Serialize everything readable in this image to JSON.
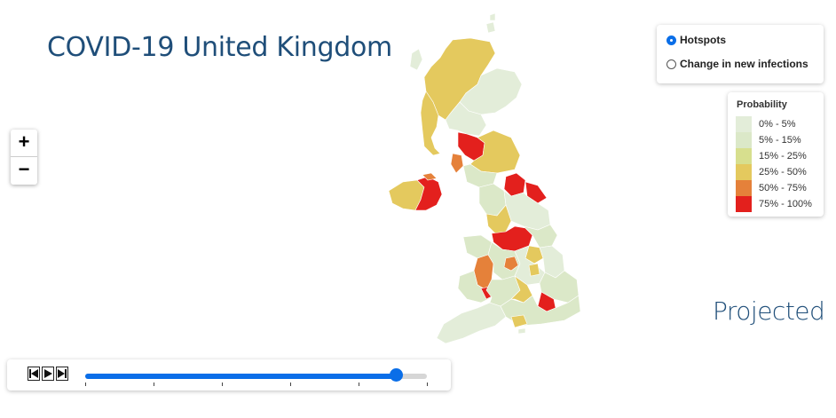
{
  "title": "COVID-19 United Kingdom",
  "zoom": {
    "in_label": "+",
    "out_label": "−"
  },
  "mode": {
    "options": [
      {
        "label": "Hotspots",
        "selected": true
      },
      {
        "label": "Change in new infections",
        "selected": false
      }
    ]
  },
  "legend": {
    "title": "Probability",
    "items": [
      {
        "label": "0% - 5%",
        "color": "#e3edd9"
      },
      {
        "label": "5% - 15%",
        "color": "#dbe8c8"
      },
      {
        "label": "15% - 25%",
        "color": "#d7df8e"
      },
      {
        "label": "25% - 50%",
        "color": "#e4c95e"
      },
      {
        "label": "50% - 75%",
        "color": "#e5813a"
      },
      {
        "label": "75% - 100%",
        "color": "#e3201d"
      }
    ]
  },
  "period_label": "Projected",
  "timeline": {
    "progress": 0.91,
    "tick_count": 6
  },
  "colors": {
    "accent": "#0a6ee8",
    "title": "#1f4e79"
  }
}
